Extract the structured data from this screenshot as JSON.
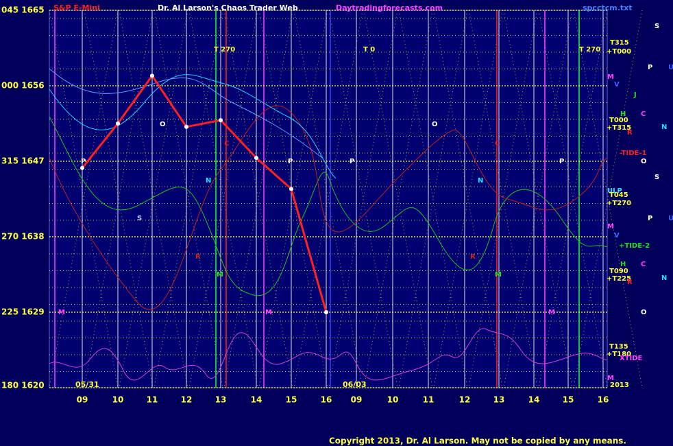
{
  "chart_data": {
    "type": "line",
    "title": "Dr. Al Larson's Chaos Trader Web",
    "subtitle": "Daytradingforecasts.com",
    "file_label": "spcctcm.txt",
    "copyright": "Copyright 2013, Dr. Al Larson. May not be copied by any means.",
    "date_labels": [
      "05/31",
      "06/03"
    ],
    "categories": [
      "09",
      "10",
      "11",
      "12",
      "13",
      "14",
      "15",
      "16",
      "09",
      "10",
      "11",
      "12",
      "13",
      "14",
      "15",
      "16"
    ],
    "series": [
      {
        "name": "S&P E-Mini",
        "color": "#ff2020",
        "values": [
          1646.2,
          1651.5,
          1657.2,
          1651.1,
          1651.9,
          1647.4,
          1643.7,
          1629,
          null,
          null,
          null,
          null,
          null,
          null,
          null,
          null
        ]
      }
    ],
    "ylim": [
      1620,
      1665
    ],
    "yticks": [
      {
        "value": 1620,
        "label": "180 1620"
      },
      {
        "value": 1629,
        "label": "225 1629"
      },
      {
        "value": 1638,
        "label": "270 1638"
      },
      {
        "value": 1647,
        "label": "315 1647"
      },
      {
        "value": 1656,
        "label": "000 1656"
      },
      {
        "value": 1665,
        "label": "045 1665"
      }
    ],
    "grid": true,
    "annotations": [
      {
        "text": "T 270",
        "color": "#ffff40"
      },
      {
        "text": "T 0",
        "color": "#ffff40"
      },
      {
        "text": "T 270",
        "color": "#ffff40"
      },
      {
        "text": "P",
        "color": "#ffffff"
      },
      {
        "text": "O",
        "color": "#ffffff"
      },
      {
        "text": "C",
        "color": "#d02020"
      },
      {
        "text": "N",
        "color": "#20e0ff"
      },
      {
        "text": "S",
        "color": "#c0c0ff"
      },
      {
        "text": "R",
        "color": "#d02020"
      },
      {
        "text": "M",
        "color": "#20e020"
      },
      {
        "text": "M",
        "color": "#ff40ff"
      },
      {
        "text": "M",
        "color": "#ff40ff"
      },
      {
        "text": "P",
        "color": "#ffffff"
      },
      {
        "text": "P",
        "color": "#ffffff"
      },
      {
        "text": "O",
        "color": "#ffffff"
      },
      {
        "text": "C",
        "color": "#d02020"
      },
      {
        "text": "N",
        "color": "#20e0ff"
      },
      {
        "text": "R",
        "color": "#d02020"
      },
      {
        "text": "M",
        "color": "#20e020"
      },
      {
        "text": "M",
        "color": "#ff40ff"
      },
      {
        "text": "P",
        "color": "#ffffff"
      },
      {
        "text": "S",
        "color": "#ffffff"
      },
      {
        "text": "P",
        "color": "#ffffff"
      },
      {
        "text": "U",
        "color": "#4060ff"
      },
      {
        "text": "T315",
        "color": "#ffff40"
      },
      {
        "text": "+T000",
        "color": "#ffff40"
      },
      {
        "text": "M",
        "color": "#ff40ff"
      },
      {
        "text": "V",
        "color": "#4060ff"
      },
      {
        "text": "J",
        "color": "#20e020"
      },
      {
        "text": "H",
        "color": "#20e020"
      },
      {
        "text": "C",
        "color": "#ff40ff"
      },
      {
        "text": "T000",
        "color": "#ffff40"
      },
      {
        "text": "+T315",
        "color": "#ffff40"
      },
      {
        "text": "R",
        "color": "#ff2020"
      },
      {
        "text": "N",
        "color": "#20e0ff"
      },
      {
        "text": "-TIDE-1",
        "color": "#ff2020"
      },
      {
        "text": "O",
        "color": "#ffffff"
      },
      {
        "text": "S",
        "color": "#ffffff"
      },
      {
        "text": "ULP",
        "color": "#20e0ff"
      },
      {
        "text": "T045",
        "color": "#ffff40"
      },
      {
        "text": "+T270",
        "color": "#ffff40"
      },
      {
        "text": "P",
        "color": "#ffffff"
      },
      {
        "text": "U",
        "color": "#4060ff"
      },
      {
        "text": "M",
        "color": "#ff40ff"
      },
      {
        "text": "V",
        "color": "#4060ff"
      },
      {
        "text": "+TIDE-2",
        "color": "#20e020"
      },
      {
        "text": "H",
        "color": "#20e020"
      },
      {
        "text": "C",
        "color": "#ff40ff"
      },
      {
        "text": "T090",
        "color": "#ffff40"
      },
      {
        "text": "+T225",
        "color": "#ffff40"
      },
      {
        "text": "R",
        "color": "#ff2020"
      },
      {
        "text": "N",
        "color": "#20e0ff"
      },
      {
        "text": "O",
        "color": "#ffffff"
      },
      {
        "text": "T135",
        "color": "#ffff40"
      },
      {
        "text": "+T180",
        "color": "#ffff40"
      },
      {
        "text": "XTIDE",
        "color": "#ff40ff"
      },
      {
        "text": "M",
        "color": "#ff40ff"
      },
      {
        "text": "2013",
        "color": "#ffff40"
      }
    ]
  }
}
